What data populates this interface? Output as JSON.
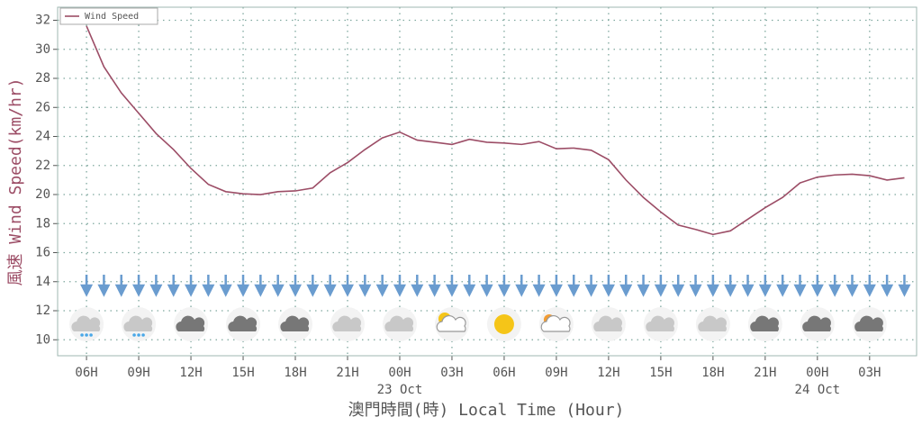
{
  "chart_data": {
    "type": "line",
    "x_label": "澳門時間(時) Local Time (Hour)",
    "y_label": "風速 Wind Speed(km/hr)",
    "legend_position": "top-left",
    "grid": true,
    "x": [
      0,
      1,
      2,
      3,
      4,
      5,
      6,
      7,
      8,
      9,
      10,
      11,
      12,
      13,
      14,
      15,
      16,
      17,
      18,
      19,
      20,
      21,
      22,
      23,
      24,
      25,
      26,
      27,
      28,
      29,
      30,
      31,
      32,
      33,
      34,
      35,
      36,
      37,
      38,
      39,
      40,
      41,
      42,
      43,
      44,
      45,
      46,
      47
    ],
    "series": [
      {
        "name": "Wind Speed",
        "color": "#9c4d66",
        "values": [
          31.6,
          28.8,
          27.0,
          25.6,
          24.2,
          23.1,
          21.8,
          20.7,
          20.2,
          20.05,
          20.0,
          20.2,
          20.25,
          20.45,
          21.5,
          22.2,
          23.1,
          23.9,
          24.3,
          23.75,
          23.6,
          23.45,
          23.8,
          23.6,
          23.55,
          23.45,
          23.65,
          23.15,
          23.2,
          23.05,
          22.4,
          21.0,
          19.8,
          18.8,
          17.9,
          17.6,
          17.25,
          17.5,
          18.3,
          19.1,
          19.8,
          20.8,
          21.2,
          21.35,
          21.4,
          21.3,
          21.0,
          21.15
        ]
      }
    ],
    "xlim": [
      -1.66,
      47.7
    ],
    "ylim": [
      8.9,
      32.9
    ],
    "yticks": [
      10,
      12,
      14,
      16,
      18,
      20,
      22,
      24,
      26,
      28,
      30,
      32
    ],
    "xticks": [
      {
        "value": 0,
        "label": "06H"
      },
      {
        "value": 3,
        "label": "09H"
      },
      {
        "value": 6,
        "label": "12H"
      },
      {
        "value": 9,
        "label": "15H"
      },
      {
        "value": 12,
        "label": "18H"
      },
      {
        "value": 15,
        "label": "21H"
      },
      {
        "value": 18,
        "label": "00H"
      },
      {
        "value": 21,
        "label": "03H"
      },
      {
        "value": 24,
        "label": "06H"
      },
      {
        "value": 27,
        "label": "09H"
      },
      {
        "value": 30,
        "label": "12H"
      },
      {
        "value": 33,
        "label": "15H"
      },
      {
        "value": 36,
        "label": "18H"
      },
      {
        "value": 39,
        "label": "21H"
      },
      {
        "value": 42,
        "label": "00H"
      },
      {
        "value": 45,
        "label": "03H"
      }
    ],
    "date_labels": [
      {
        "value": 18,
        "label": "23 Oct"
      },
      {
        "value": 42,
        "label": "24 Oct"
      }
    ]
  }
}
